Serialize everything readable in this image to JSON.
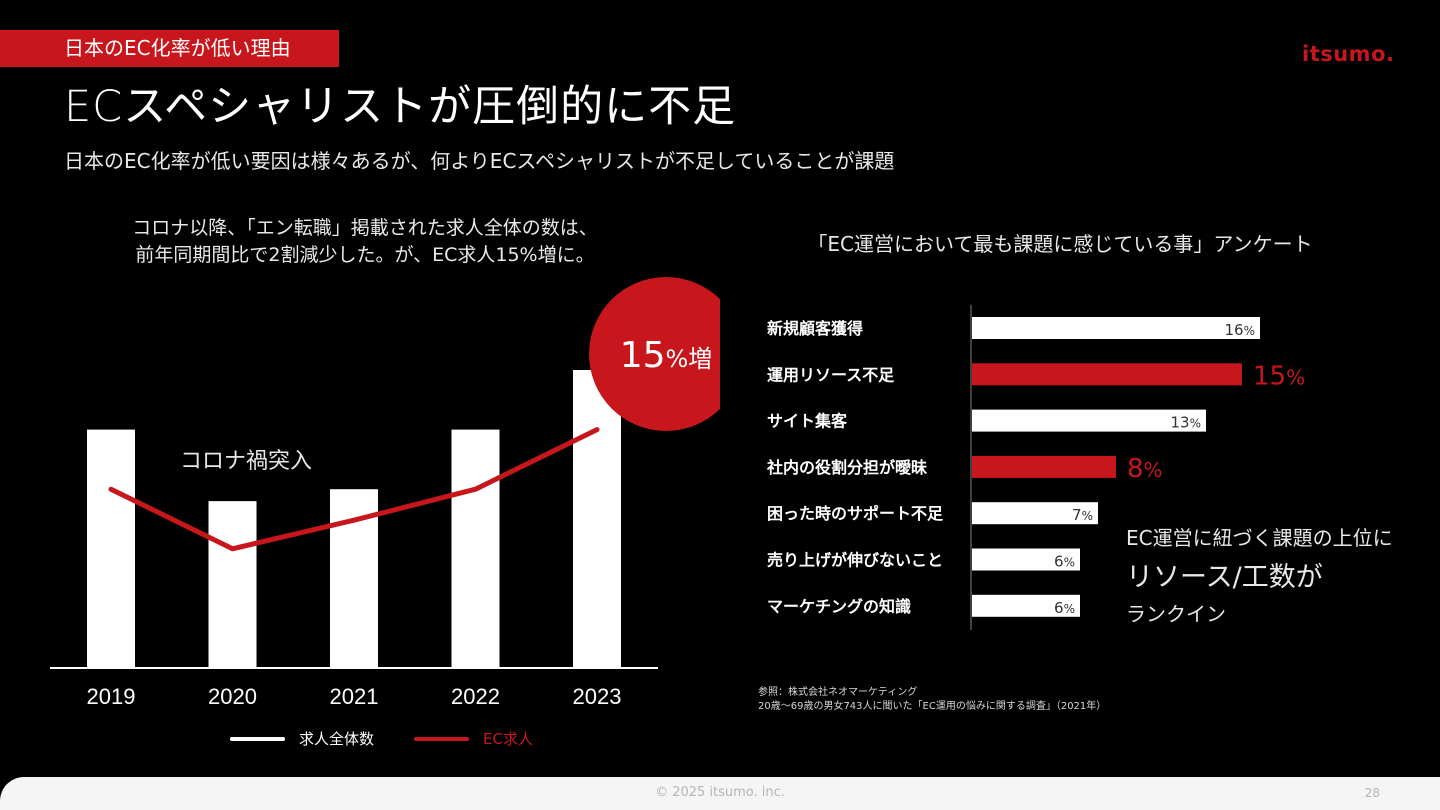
{
  "section_tag": "日本のEC化率が低い理由",
  "brand": "itsumo.",
  "title": "ECスペシャリストが圧倒的に不足",
  "subtitle": "日本のEC化率が低い要因は様々あるが、何よりECスペシャリストが不足していることが課題",
  "left_caption": {
    "line1": "コロナ以降、「エン転職」掲載された求人全体の数は、",
    "line2": "前年同期間比で2割減少した。が、EC求人15%増に。"
  },
  "right_caption": "「EC運営において最も課題に感じている事」アンケート",
  "callout": {
    "line1": "EC運営に紐づく課題の上位に",
    "line2": "リソース/工数が",
    "line3": "ランクイン"
  },
  "source": {
    "line1": "参照：株式会社ネオマーケティング",
    "line2": "20歳〜69歳の男女743人に聞いた「EC運用の悩みに関する調査」（2021年）"
  },
  "footer": {
    "copyright": "© 2025 itsumo. inc.",
    "page": "28"
  },
  "colors": {
    "accent": "#c8161d",
    "background": "#000000",
    "bar": "#ffffff"
  },
  "chart_data": [
    {
      "type": "bar",
      "categories": [
        "2019",
        "2020",
        "2021",
        "2022",
        "2023"
      ],
      "series": [
        {
          "name": "求人全体数",
          "values": [
            100,
            70,
            75,
            100,
            125
          ]
        },
        {
          "name": "EC求人",
          "values": [
            75,
            50,
            62,
            75,
            100
          ]
        }
      ],
      "legend": [
        "求人全体数",
        "EC求人"
      ],
      "legend_position": "bottom",
      "annotations": [
        "コロナ禍突入"
      ],
      "badge": {
        "value": "15",
        "unit": "%",
        "text": "増"
      },
      "grid": false
    },
    {
      "type": "bar",
      "orientation": "horizontal",
      "categories": [
        "新規顧客獲得",
        "運用リソース不足",
        "サイト集客",
        "社内の役割分担が曖昧",
        "困った時のサポート不足",
        "売り上げが伸びないこと",
        "マーケチングの知識"
      ],
      "values": [
        16,
        15,
        13,
        8,
        7,
        6,
        6
      ],
      "unit": "%",
      "highlight": [
        false,
        true,
        false,
        true,
        false,
        false,
        false
      ],
      "xlim": [
        0,
        18
      ],
      "grid": false
    }
  ]
}
